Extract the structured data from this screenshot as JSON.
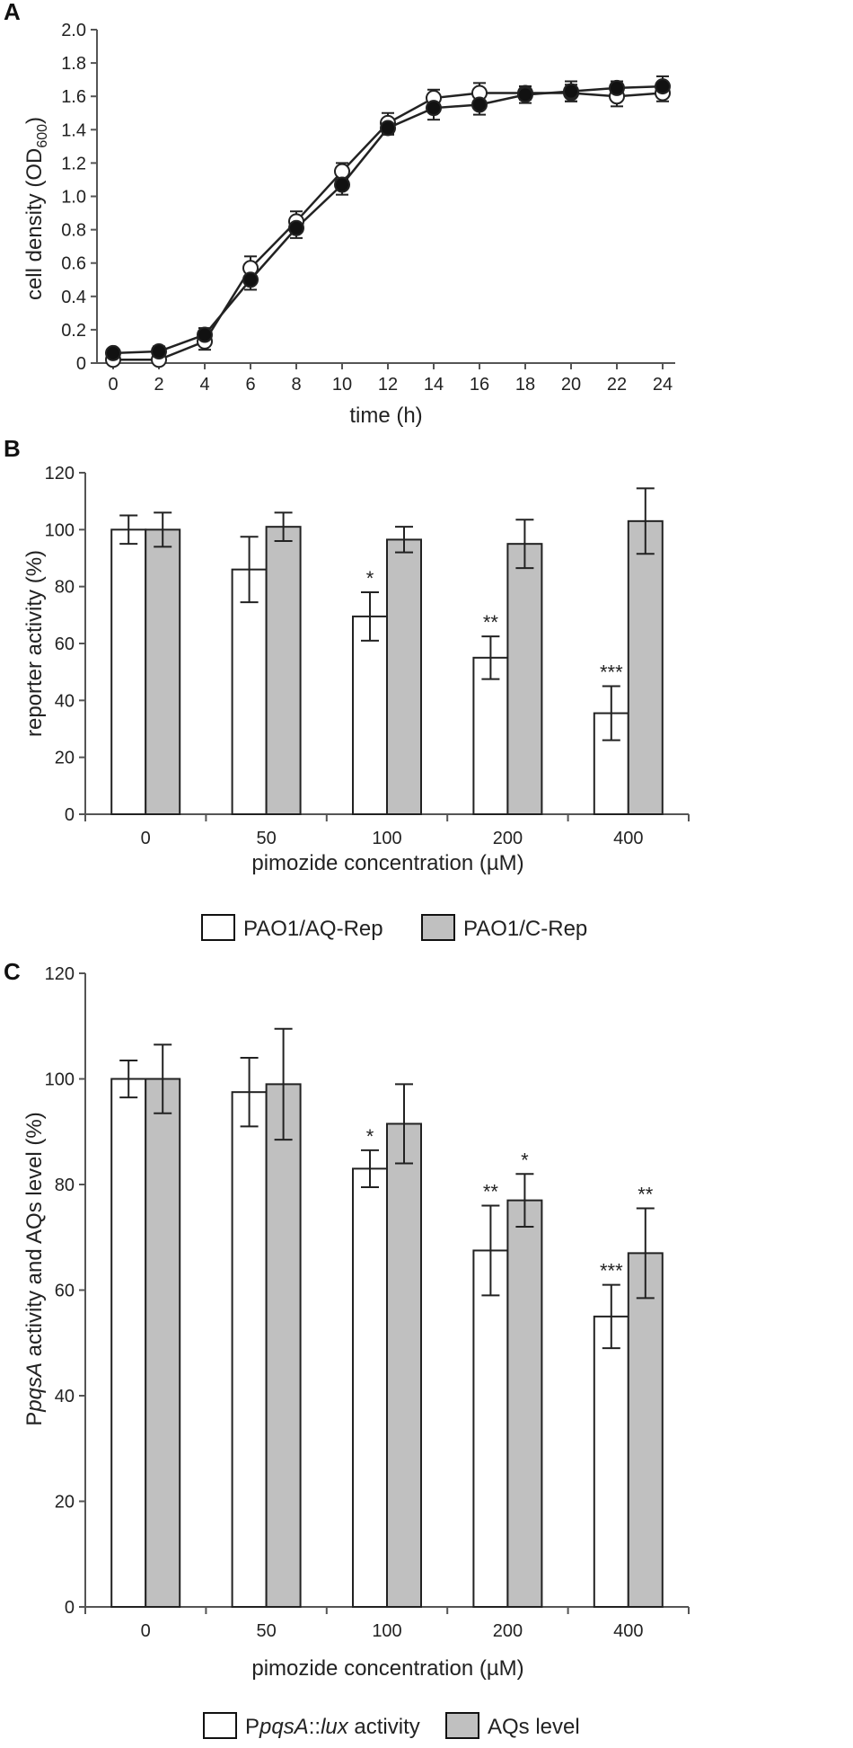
{
  "colors": {
    "open": "#ffffff",
    "filled": "#111111",
    "gray_bar": "#c0c0c0",
    "axis": "#555555",
    "line": "#222222"
  },
  "chart_data": [
    {
      "panel": "A",
      "type": "line",
      "title": "",
      "xlabel": "time (h)",
      "ylabel_main": "cell density (OD",
      "ylabel_sub": "600",
      "ylabel_end": ")",
      "x": [
        0,
        2,
        4,
        6,
        8,
        10,
        12,
        14,
        16,
        18,
        20,
        22,
        24
      ],
      "xticks": [
        "0",
        "2",
        "4",
        "6",
        "8",
        "10",
        "12",
        "14",
        "16",
        "18",
        "20",
        "22",
        "24"
      ],
      "yticks": [
        "0",
        "0.2",
        "0.4",
        "0.6",
        "0.8",
        "1.0",
        "1.2",
        "1.4",
        "1.6",
        "1.8",
        "2.0"
      ],
      "ylim": [
        0,
        2.0
      ],
      "series": [
        {
          "name": "open circles",
          "marker": "open",
          "values": [
            0.02,
            0.02,
            0.13,
            0.57,
            0.85,
            1.15,
            1.44,
            1.59,
            1.62,
            1.62,
            1.62,
            1.6,
            1.62
          ],
          "errors": [
            0.02,
            0.02,
            0.05,
            0.07,
            0.06,
            0.05,
            0.06,
            0.05,
            0.06,
            0.04,
            0.05,
            0.06,
            0.05
          ]
        },
        {
          "name": "filled circles",
          "marker": "filled",
          "values": [
            0.06,
            0.07,
            0.17,
            0.5,
            0.81,
            1.07,
            1.41,
            1.53,
            1.55,
            1.61,
            1.63,
            1.65,
            1.66
          ],
          "errors": [
            0.02,
            0.03,
            0.04,
            0.06,
            0.06,
            0.06,
            0.04,
            0.07,
            0.06,
            0.05,
            0.06,
            0.04,
            0.06
          ]
        }
      ]
    },
    {
      "panel": "B",
      "type": "bar",
      "title": "",
      "xlabel": "pimozide concentration (µM)",
      "ylabel": "reporter activity (%)",
      "categories": [
        "0",
        "50",
        "100",
        "200",
        "400"
      ],
      "yticks": [
        "0",
        "20",
        "40",
        "60",
        "80",
        "100",
        "120"
      ],
      "ylim": [
        0,
        120
      ],
      "series": [
        {
          "name": "PAO1/AQ-Rep",
          "fill": "open",
          "values": [
            100,
            86,
            69.5,
            55,
            35.5
          ],
          "errors": [
            5,
            11.5,
            8.5,
            7.5,
            9.5
          ],
          "annotations": [
            "",
            "",
            "*",
            "**",
            "***"
          ]
        },
        {
          "name": "PAO1/C-Rep",
          "fill": "gray",
          "values": [
            100,
            101,
            96.5,
            95,
            103
          ],
          "errors": [
            6,
            5,
            4.5,
            8.5,
            11.5
          ],
          "annotations": [
            "",
            "",
            "",
            "",
            ""
          ]
        }
      ],
      "legend": [
        "PAO1/AQ-Rep",
        "PAO1/C-Rep"
      ]
    },
    {
      "panel": "C",
      "type": "bar",
      "title": "",
      "xlabel": "pimozide concentration (µM)",
      "ylabel_prefix": "P",
      "ylabel_italic": "pqsA",
      "ylabel_suffix": " activity and AQs level (%)",
      "categories": [
        "0",
        "50",
        "100",
        "200",
        "400"
      ],
      "yticks": [
        "0",
        "20",
        "40",
        "60",
        "80",
        "100",
        "120"
      ],
      "ylim": [
        0,
        120
      ],
      "series": [
        {
          "name": "PpqsA::lux activity",
          "fill": "open",
          "values": [
            100,
            97.5,
            83,
            67.5,
            55
          ],
          "errors": [
            3.5,
            6.5,
            3.5,
            8.5,
            6
          ],
          "annotations": [
            "",
            "",
            "*",
            "**",
            "***"
          ]
        },
        {
          "name": "AQs level",
          "fill": "gray",
          "values": [
            100,
            99,
            91.5,
            77,
            67
          ],
          "errors": [
            6.5,
            10.5,
            7.5,
            5,
            8.5
          ],
          "annotations": [
            "",
            "",
            "",
            "*",
            "**"
          ]
        }
      ],
      "legend_a": {
        "p": "P",
        "italic1": "pqsA",
        "mid": "::",
        "italic2": "lux",
        "end": " activity"
      },
      "legend_b": "AQs level"
    }
  ]
}
